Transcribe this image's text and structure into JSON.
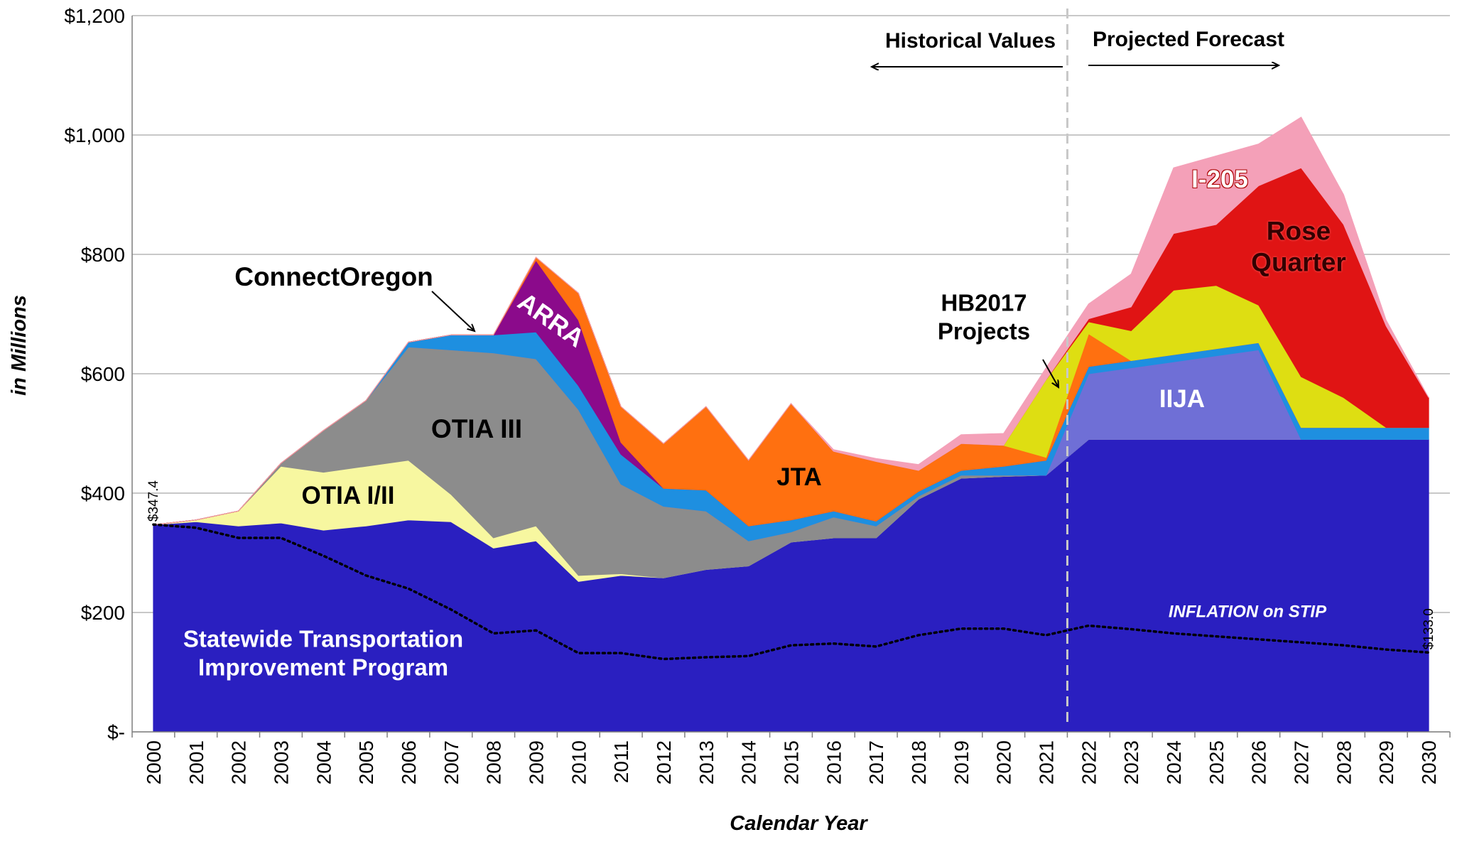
{
  "chart_data": {
    "type": "area",
    "xlabel": "Calendar Year",
    "ylabel": "in Millions",
    "categories": [
      "2000",
      "2001",
      "2002",
      "2003",
      "2004",
      "2005",
      "2006",
      "2007",
      "2008",
      "2009",
      "2010",
      "2011",
      "2012",
      "2013",
      "2014",
      "2015",
      "2016",
      "2017",
      "2018",
      "2019",
      "2020",
      "2021",
      "2022",
      "2023",
      "2024",
      "2025",
      "2026",
      "2027",
      "2028",
      "2029",
      "2030"
    ],
    "ylim": [
      0,
      1200
    ],
    "yticks": [
      {
        "value": 0,
        "label": "$-"
      },
      {
        "value": 200,
        "label": "$200"
      },
      {
        "value": 400,
        "label": "$400"
      },
      {
        "value": 600,
        "label": "$600"
      },
      {
        "value": 800,
        "label": "$800"
      },
      {
        "value": 1000,
        "label": "$1,000"
      },
      {
        "value": 1200,
        "label": "$1,200"
      }
    ],
    "grid": true,
    "annotations": [
      "Historical Values",
      "Projected Forecast"
    ],
    "series": [
      {
        "name": "Statewide Transportation Improvement Program",
        "color": "#2a1fc0",
        "values": [
          347,
          352,
          345,
          350,
          338,
          345,
          355,
          352,
          308,
          320,
          252,
          262,
          258,
          272,
          278,
          318,
          325,
          325,
          390,
          425,
          428,
          430,
          490,
          490,
          490,
          490,
          490,
          490,
          490,
          490,
          490
        ]
      },
      {
        "name": "OTIA I/II",
        "color": "#f7f7a0",
        "values": [
          0,
          3,
          25,
          95,
          97,
          100,
          100,
          46,
          17,
          25,
          10,
          3,
          0,
          0,
          0,
          0,
          0,
          0,
          0,
          0,
          0,
          0,
          0,
          0,
          0,
          0,
          0,
          0,
          0,
          0,
          0
        ]
      },
      {
        "name": "OTIA III",
        "color": "#8c8c8c",
        "values": [
          0,
          0,
          0,
          5,
          70,
          110,
          190,
          242,
          310,
          280,
          278,
          150,
          120,
          98,
          42,
          17,
          35,
          20,
          5,
          5,
          2,
          0,
          0,
          0,
          0,
          0,
          0,
          0,
          0,
          0,
          0
        ]
      },
      {
        "name": "IIJA",
        "color": "#6f6fd6",
        "values": [
          0,
          0,
          0,
          0,
          0,
          0,
          0,
          0,
          0,
          0,
          0,
          0,
          0,
          0,
          0,
          0,
          0,
          0,
          0,
          0,
          0,
          0,
          110,
          120,
          130,
          140,
          150,
          0,
          0,
          0,
          0
        ]
      },
      {
        "name": "ConnectOregon",
        "color": "#1e8fe0",
        "values": [
          0,
          0,
          0,
          0,
          0,
          0,
          8,
          25,
          30,
          45,
          40,
          50,
          30,
          35,
          25,
          20,
          10,
          8,
          8,
          8,
          15,
          25,
          12,
          12,
          12,
          12,
          12,
          20,
          20,
          20,
          20
        ]
      },
      {
        "name": "ARRA",
        "color": "#8b0a8b",
        "values": [
          0,
          0,
          0,
          0,
          0,
          0,
          0,
          0,
          0,
          120,
          110,
          20,
          0,
          0,
          0,
          0,
          0,
          0,
          0,
          0,
          0,
          0,
          0,
          0,
          0,
          0,
          0,
          0,
          0,
          0,
          0
        ]
      },
      {
        "name": "JTA",
        "color": "#ff7010",
        "values": [
          0,
          0,
          0,
          0,
          0,
          0,
          0,
          0,
          0,
          5,
          45,
          60,
          75,
          140,
          110,
          195,
          100,
          100,
          35,
          45,
          35,
          5,
          55,
          0,
          0,
          0,
          0,
          0,
          0,
          0,
          0
        ]
      },
      {
        "name": "HB2017 Projects",
        "color": "#dede12",
        "values": [
          0,
          0,
          0,
          0,
          0,
          0,
          0,
          0,
          0,
          0,
          0,
          0,
          0,
          0,
          0,
          0,
          0,
          0,
          0,
          0,
          0,
          130,
          20,
          50,
          108,
          106,
          63,
          85,
          50,
          0,
          0
        ]
      },
      {
        "name": "Rose Quarter",
        "color": "#e01414",
        "values": [
          0,
          0,
          0,
          0,
          0,
          0,
          0,
          0,
          0,
          0,
          0,
          0,
          0,
          0,
          0,
          0,
          0,
          0,
          0,
          0,
          0,
          0,
          5,
          40,
          95,
          102,
          200,
          350,
          290,
          170,
          50
        ]
      },
      {
        "name": "I-205",
        "color": "#f4a0b8",
        "values": [
          0,
          0,
          0,
          0,
          0,
          0,
          0,
          0,
          0,
          0,
          0,
          0,
          0,
          0,
          0,
          0,
          3,
          5,
          10,
          15,
          20,
          20,
          25,
          55,
          110,
          115,
          70,
          85,
          50,
          10,
          0
        ]
      },
      {
        "name": "INFLATION on STIP",
        "type": "line",
        "color": "#000000",
        "values": [
          347.4,
          342,
          325,
          325,
          295,
          262,
          240,
          205,
          165,
          170,
          132,
          132,
          122,
          125,
          127,
          145,
          148,
          143,
          162,
          173,
          173,
          162,
          178,
          172,
          165,
          160,
          155,
          150,
          145,
          138,
          133.0
        ],
        "value_labels": [
          "$347.4",
          null,
          null,
          null,
          null,
          null,
          null,
          null,
          null,
          null,
          null,
          null,
          null,
          null,
          null,
          null,
          null,
          null,
          null,
          null,
          null,
          null,
          null,
          null,
          null,
          null,
          null,
          null,
          null,
          null,
          "$133.0"
        ]
      }
    ]
  }
}
